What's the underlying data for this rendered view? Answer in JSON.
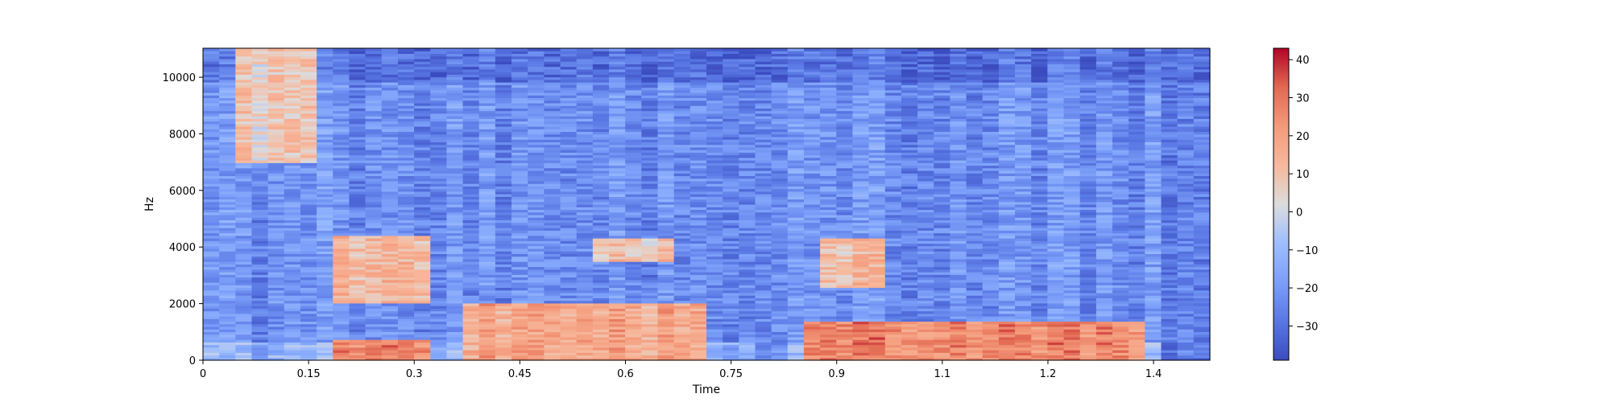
{
  "chart_data": {
    "type": "heatmap",
    "subtype": "spectrogram",
    "title": "",
    "xlabel": "Time",
    "ylabel": "Hz",
    "xlim": [
      0,
      1.43
    ],
    "ylim": [
      0,
      11025
    ],
    "x_ticks": [
      0,
      0.15,
      0.3,
      0.45,
      0.6,
      0.75,
      0.9,
      1.05,
      1.2,
      1.35
    ],
    "x_tick_labels": [
      "0",
      "0.15",
      "0.3",
      "0.45",
      "0.6",
      "0.75",
      "0.9",
      "1.1",
      "1.2",
      "1.4"
    ],
    "y_ticks": [
      0,
      2000,
      4000,
      6000,
      8000,
      10000
    ],
    "y_tick_labels": [
      "0",
      "2000",
      "4000",
      "6000",
      "8000",
      "10000"
    ],
    "colormap": "coolwarm",
    "colorbar": {
      "range": [
        -39,
        43
      ],
      "ticks": [
        40,
        30,
        20,
        10,
        0,
        -10,
        -20,
        -30
      ],
      "tick_labels": [
        "40",
        "30",
        "20",
        "10",
        "0",
        "−10",
        "−20",
        "−30"
      ]
    },
    "energy_regions_db": [
      {
        "t": [
          0.05,
          0.16
        ],
        "f": [
          7000,
          11000
        ],
        "level": 8
      },
      {
        "t": [
          0.19,
          0.32
        ],
        "f": [
          2000,
          4400
        ],
        "level": 14
      },
      {
        "t": [
          0.19,
          0.32
        ],
        "f": [
          0,
          700
        ],
        "level": 28
      },
      {
        "t": [
          0.38,
          0.72
        ],
        "f": [
          0,
          2000
        ],
        "level": 18
      },
      {
        "t": [
          0.55,
          0.68
        ],
        "f": [
          3500,
          4300
        ],
        "level": 10
      },
      {
        "t": [
          0.85,
          1.34
        ],
        "f": [
          0,
          1400
        ],
        "level": 26
      },
      {
        "t": [
          0.88,
          0.98
        ],
        "f": [
          2600,
          4300
        ],
        "level": 10
      },
      {
        "t": [
          0.78,
          0.84
        ],
        "f": [
          0,
          11000
        ],
        "level": -30
      }
    ],
    "grid": false,
    "legend": "none"
  }
}
